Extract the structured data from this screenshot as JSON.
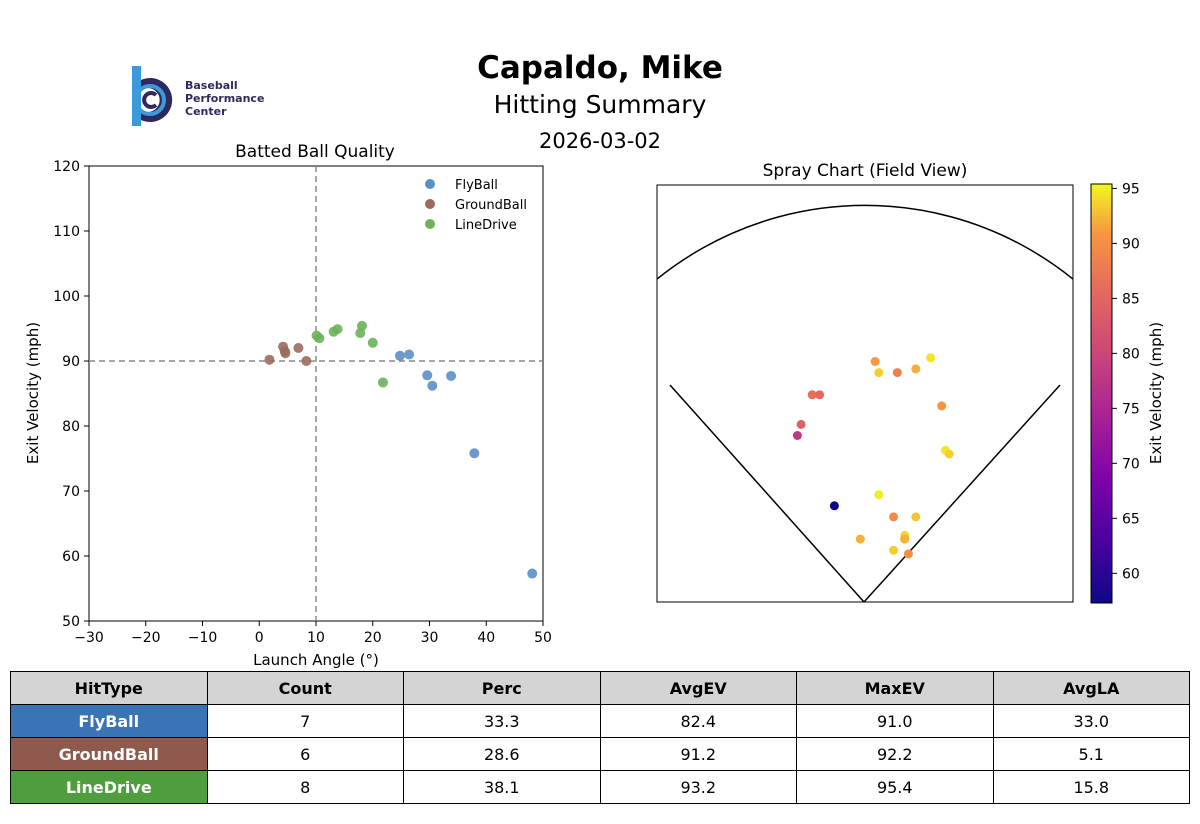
{
  "header": {
    "name": "Capaldo, Mike",
    "subtitle": "Hitting Summary",
    "date": "2026-03-02"
  },
  "logo": {
    "lines": [
      "Baseball",
      "Performance",
      "Center"
    ],
    "colors": {
      "dark": "#2e2a5e",
      "light": "#3b9ad9"
    }
  },
  "chart_data": [
    {
      "type": "scatter",
      "title": "Batted Ball Quality",
      "xlabel": "Launch Angle (°)",
      "ylabel": "Exit Velocity (mph)",
      "xlim": [
        -30,
        50
      ],
      "ylim": [
        50,
        120
      ],
      "xticks": [
        "−30",
        "−20",
        "−10",
        "0",
        "10",
        "20",
        "30",
        "40",
        "50"
      ],
      "yticks": [
        "50",
        "60",
        "70",
        "80",
        "90",
        "100",
        "110",
        "120"
      ],
      "reference_lines": {
        "x": 10,
        "y": 90
      },
      "legend_position": "top-right",
      "grid": false,
      "series": [
        {
          "name": "FlyBall",
          "color": "#5b8fc7",
          "points": [
            [
              24.8,
              90.8
            ],
            [
              26.4,
              91.0
            ],
            [
              29.6,
              87.8
            ],
            [
              30.5,
              86.2
            ],
            [
              33.8,
              87.7
            ],
            [
              37.9,
              75.8
            ],
            [
              48.1,
              57.3
            ]
          ]
        },
        {
          "name": "GroundBall",
          "color": "#9a6a5e",
          "points": [
            [
              1.8,
              90.2
            ],
            [
              4.2,
              92.2
            ],
            [
              4.5,
              91.5
            ],
            [
              6.9,
              92.0
            ],
            [
              8.3,
              90.0
            ],
            [
              4.6,
              91.2
            ]
          ]
        },
        {
          "name": "LineDrive",
          "color": "#6ab15a",
          "points": [
            [
              10.1,
              93.9
            ],
            [
              10.6,
              93.5
            ],
            [
              13.1,
              94.5
            ],
            [
              13.8,
              94.9
            ],
            [
              17.8,
              94.3
            ],
            [
              18.1,
              95.4
            ],
            [
              20.0,
              92.8
            ],
            [
              21.8,
              86.7
            ]
          ]
        }
      ]
    },
    {
      "type": "scatter",
      "title": "Spray Chart (Field View)",
      "colorbar_label": "Exit Velocity (mph)",
      "colorbar_range": [
        57.3,
        95.4
      ],
      "colorbar_ticks": [
        "60",
        "65",
        "70",
        "75",
        "80",
        "85",
        "90",
        "95"
      ],
      "colormap": "plasma",
      "points": [
        {
          "x": 0.03,
          "y": 0.65,
          "ev": 91.0
        },
        {
          "x": 0.04,
          "y": 0.62,
          "ev": 93.5
        },
        {
          "x": 0.14,
          "y": 0.63,
          "ev": 92.0
        },
        {
          "x": 0.09,
          "y": 0.62,
          "ev": 88.5
        },
        {
          "x": 0.18,
          "y": 0.66,
          "ev": 94.5
        },
        {
          "x": -0.14,
          "y": 0.56,
          "ev": 86.5
        },
        {
          "x": -0.12,
          "y": 0.56,
          "ev": 85.5
        },
        {
          "x": 0.21,
          "y": 0.53,
          "ev": 90.5
        },
        {
          "x": -0.17,
          "y": 0.48,
          "ev": 84.5
        },
        {
          "x": -0.18,
          "y": 0.45,
          "ev": 78.0
        },
        {
          "x": 0.22,
          "y": 0.41,
          "ev": 94.5
        },
        {
          "x": 0.23,
          "y": 0.4,
          "ev": 93.5
        },
        {
          "x": 0.04,
          "y": 0.29,
          "ev": 94.8
        },
        {
          "x": -0.08,
          "y": 0.26,
          "ev": 57.3
        },
        {
          "x": 0.08,
          "y": 0.23,
          "ev": 89.5
        },
        {
          "x": 0.14,
          "y": 0.23,
          "ev": 93.0
        },
        {
          "x": -0.01,
          "y": 0.17,
          "ev": 92.0
        },
        {
          "x": 0.11,
          "y": 0.18,
          "ev": 94.0
        },
        {
          "x": 0.11,
          "y": 0.17,
          "ev": 92.0
        },
        {
          "x": 0.08,
          "y": 0.14,
          "ev": 93.5
        },
        {
          "x": 0.12,
          "y": 0.13,
          "ev": 90.0
        }
      ]
    }
  ],
  "table": {
    "headers": [
      "HitType",
      "Count",
      "Perc",
      "AvgEV",
      "MaxEV",
      "AvgLA"
    ],
    "rows": [
      {
        "type": "FlyBall",
        "color": "#3a74b4",
        "count": "7",
        "perc": "33.3",
        "avgev": "82.4",
        "maxev": "91.0",
        "avgla": "33.0"
      },
      {
        "type": "GroundBall",
        "color": "#8e5a4e",
        "count": "6",
        "perc": "28.6",
        "avgev": "91.2",
        "maxev": "92.2",
        "avgla": "5.1"
      },
      {
        "type": "LineDrive",
        "color": "#4f9d3c",
        "count": "8",
        "perc": "38.1",
        "avgev": "93.2",
        "maxev": "95.4",
        "avgla": "15.8"
      }
    ]
  }
}
